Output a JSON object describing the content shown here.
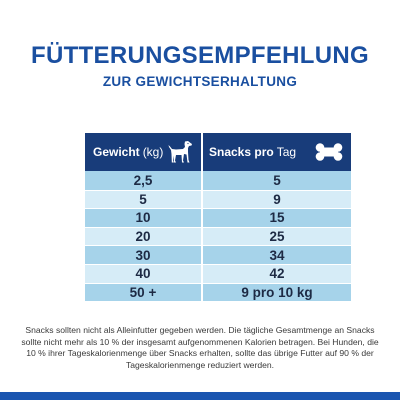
{
  "header": {
    "title": "FÜTTERUNGSEMPFEHLUNG",
    "subtitle": "ZUR GEWICHTSERHALTUNG"
  },
  "table": {
    "col_left": {
      "label": "Gewicht",
      "unit": "(kg)",
      "icon": "dog-icon"
    },
    "col_right": {
      "label": "Snacks pro",
      "unit": "Tag",
      "icon": "bone-icon"
    },
    "rows": [
      {
        "weight": "2,5",
        "snacks": "5"
      },
      {
        "weight": "5",
        "snacks": "9"
      },
      {
        "weight": "10",
        "snacks": "15"
      },
      {
        "weight": "20",
        "snacks": "25"
      },
      {
        "weight": "30",
        "snacks": "34"
      },
      {
        "weight": "40",
        "snacks": "42"
      },
      {
        "weight": "50 +",
        "snacks": "9 pro 10 kg"
      }
    ]
  },
  "note": "Snacks sollten nicht als Alleinfutter gegeben werden. Die tägliche Gesamtmenge an Snacks sollte nicht mehr als 10 % der insgesamt aufgenommenen Kalorien betragen. Bei Hunden, die 10 % ihrer Tageskalorienmenge über Snacks erhalten, sollte das übrige Futter auf 90 % der Tageskalorienmenge reduziert werden.",
  "colors": {
    "brand_blue": "#1a4fa0",
    "header_navy": "#183c7a",
    "row_dark": "#a6d3ea",
    "row_light": "#d6ecf7"
  }
}
